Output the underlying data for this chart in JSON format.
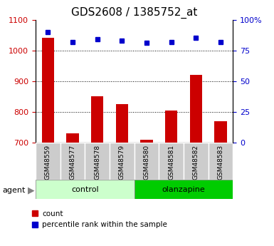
{
  "title": "GDS2608 / 1385752_at",
  "samples": [
    "GSM48559",
    "GSM48577",
    "GSM48578",
    "GSM48579",
    "GSM48580",
    "GSM48581",
    "GSM48582",
    "GSM48583"
  ],
  "counts": [
    1040,
    730,
    850,
    825,
    710,
    805,
    920,
    770
  ],
  "percentile_ranks": [
    90,
    82,
    84,
    83,
    81,
    82,
    85,
    82
  ],
  "ylim_left": [
    700,
    1100
  ],
  "ylim_right": [
    0,
    100
  ],
  "yticks_left": [
    700,
    800,
    900,
    1000,
    1100
  ],
  "yticks_right": [
    0,
    25,
    50,
    75,
    100
  ],
  "bar_color": "#cc0000",
  "dot_color": "#0000cc",
  "control_samples": [
    "GSM48559",
    "GSM48577",
    "GSM48578",
    "GSM48579"
  ],
  "olanzapine_samples": [
    "GSM48580",
    "GSM48581",
    "GSM48582",
    "GSM48583"
  ],
  "control_label": "control",
  "olanzapine_label": "olanzapine",
  "agent_label": "agent",
  "legend_count": "count",
  "legend_percentile": "percentile rank within the sample",
  "control_bg": "#ccffcc",
  "olanzapine_bg": "#00cc00",
  "sample_bg": "#cccccc",
  "grid_color": "#000000",
  "title_fontsize": 11,
  "tick_fontsize": 8,
  "label_fontsize": 8
}
